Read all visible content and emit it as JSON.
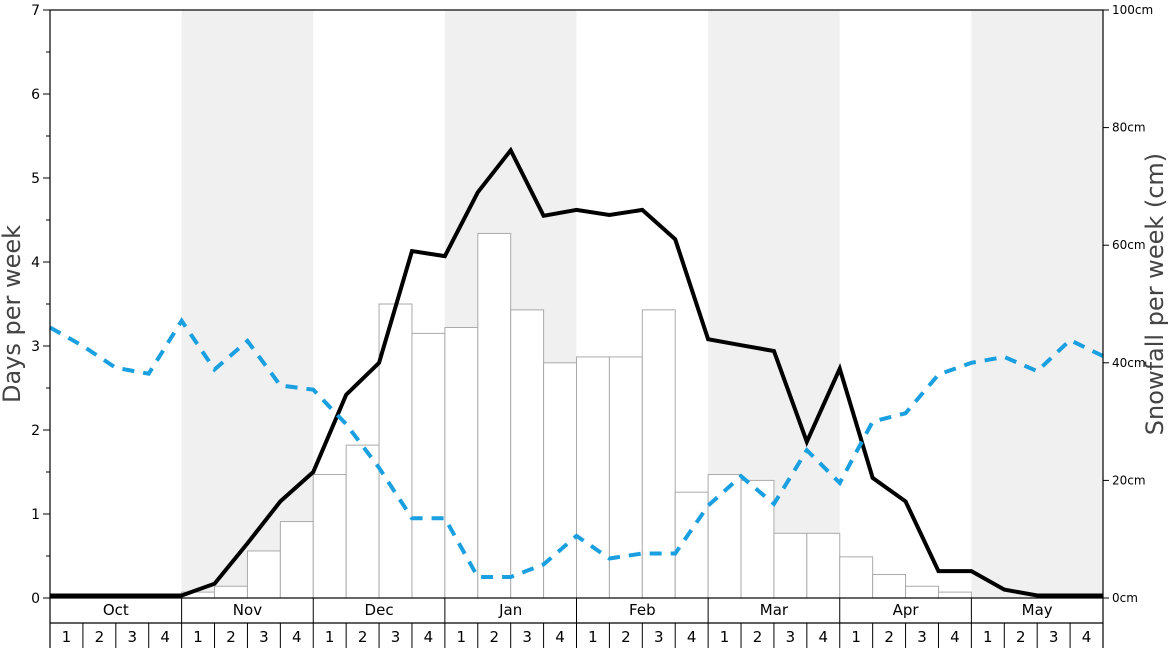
{
  "chart_data": {
    "type": "bar",
    "title": "",
    "ylabel_left": "Days per week",
    "ylabel_right": "Snowfall per week (cm)",
    "ylim_left": [
      0,
      7
    ],
    "ylim_right": [
      0,
      100
    ],
    "left_ticks": [
      "0",
      "1",
      "2",
      "3",
      "4",
      "5",
      "6",
      "7"
    ],
    "right_ticks": [
      "0cm",
      "20cm",
      "40cm",
      "60cm",
      "80cm",
      "100cm"
    ],
    "months": [
      "Oct",
      "Nov",
      "Dec",
      "Jan",
      "Feb",
      "Mar",
      "Apr",
      "May"
    ],
    "week_labels": [
      "1",
      "2",
      "3",
      "4"
    ],
    "colors": {
      "bars_fill": "#ffffff",
      "bars_stroke": "#aaaaaa",
      "snow_days_line": "#000000",
      "dashed_line": "#1a9fe0",
      "alternate_band": "#f0f0f0"
    },
    "series": [
      {
        "kind": "bar",
        "axis": "right",
        "values": [
          0,
          0,
          0,
          0,
          1,
          2,
          8,
          13,
          21,
          26,
          50,
          45,
          46,
          62,
          49,
          40,
          41,
          41,
          49,
          18,
          21,
          20,
          11,
          11,
          7,
          4,
          2,
          1,
          0,
          0,
          0,
          0
        ]
      },
      {
        "kind": "line",
        "axis": "left",
        "style": "solid",
        "values": [
          0.03,
          0.03,
          0.03,
          0.03,
          0.03,
          0.17,
          0.65,
          1.15,
          1.5,
          2.42,
          2.8,
          4.13,
          4.07,
          4.83,
          5.33,
          4.55,
          4.62,
          4.56,
          4.62,
          4.27,
          3.08,
          3.01,
          2.94,
          1.86,
          2.73,
          1.43,
          1.15,
          0.32,
          0.32,
          0.1,
          0.03,
          0.03,
          0.03
        ]
      },
      {
        "kind": "line",
        "axis": "left",
        "style": "dashed",
        "values": [
          3.22,
          3.0,
          2.74,
          2.67,
          3.3,
          2.72,
          3.06,
          2.53,
          2.48,
          2.07,
          1.55,
          0.95,
          0.95,
          0.25,
          0.25,
          0.4,
          0.74,
          0.47,
          0.53,
          0.53,
          1.1,
          1.45,
          1.12,
          1.76,
          1.37,
          2.1,
          2.2,
          2.66,
          2.8,
          2.87,
          2.7,
          3.07,
          2.88
        ]
      }
    ]
  }
}
